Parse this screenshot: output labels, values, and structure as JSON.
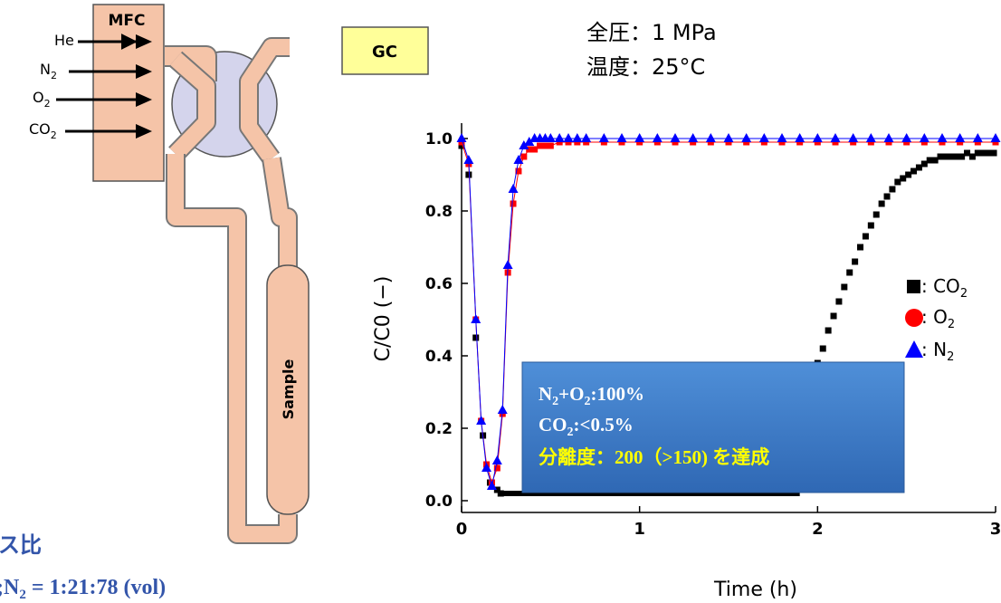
{
  "apparatus": {
    "mfc_label": "MFC",
    "gases": [
      {
        "label": "He",
        "sub": ""
      },
      {
        "label": "N",
        "sub": "2"
      },
      {
        "label": "O",
        "sub": "2"
      },
      {
        "label": "CO",
        "sub": "2"
      }
    ],
    "gc_label": "GC",
    "sample_label": "Sample"
  },
  "gas_ratio": {
    "title": "ス比",
    "line": [
      {
        "t": ";N",
        "sub": false
      },
      {
        "t": "2",
        "sub": true
      },
      {
        "t": " = 1:21:78 (vol)",
        "sub": false
      }
    ]
  },
  "conditions": {
    "pressure": "全圧：1 MPa",
    "temperature": "温度：25°C"
  },
  "result_box": {
    "line1": [
      {
        "t": "N",
        "sub": false
      },
      {
        "t": "2",
        "sub": true
      },
      {
        "t": "+O",
        "sub": false
      },
      {
        "t": "2",
        "sub": true
      },
      {
        "t": ":100%",
        "sub": false
      }
    ],
    "line2": [
      {
        "t": "CO",
        "sub": false
      },
      {
        "t": "2",
        "sub": true
      },
      {
        "t": ":<0.5%",
        "sub": false
      }
    ],
    "line3": "分離度：200（>150) を達成"
  },
  "colors": {
    "series_co2": "#000000",
    "series_o2": "#ff0000",
    "series_n2": "#0000ff",
    "mfc_fill": "#f5c4a8",
    "gc_fill": "#ffff99",
    "valve_fill": "#d4d4ec",
    "result_box_fill": "#3d7bc8",
    "result_highlight": "#ffff00",
    "gas_ratio_text": "#3355aa"
  },
  "chart_data": {
    "type": "scatter",
    "xlabel": "Time (h)",
    "ylabel": "C/C0 (−)",
    "xlim": [
      0,
      3
    ],
    "ylim": [
      0,
      1.05
    ],
    "xticks": [
      "0",
      "1",
      "2",
      "3"
    ],
    "yticks": [
      "0.0",
      "0.2",
      "0.4",
      "0.6",
      "0.8",
      "1.0"
    ],
    "legend_position": "right",
    "series": [
      {
        "name": "CO2",
        "legend": {
          "t": ": CO",
          "sub": "2"
        },
        "marker": "square",
        "x": [
          0.0,
          0.04,
          0.08,
          0.12,
          0.16,
          0.2,
          0.22,
          2.0,
          2.03,
          2.06,
          2.09,
          2.12,
          2.15,
          2.18,
          2.21,
          2.24,
          2.27,
          2.3,
          2.33,
          2.36,
          2.39,
          2.42,
          2.45,
          2.48,
          2.51,
          2.54,
          2.57,
          2.6,
          2.63,
          2.66,
          2.69,
          2.72,
          2.75,
          2.78,
          2.81,
          2.84,
          2.87,
          2.9,
          2.93,
          2.96,
          2.99
        ],
        "y": [
          0.98,
          0.9,
          0.45,
          0.18,
          0.05,
          0.03,
          0.02,
          0.38,
          0.42,
          0.47,
          0.51,
          0.55,
          0.59,
          0.63,
          0.66,
          0.7,
          0.73,
          0.76,
          0.79,
          0.82,
          0.84,
          0.86,
          0.88,
          0.89,
          0.9,
          0.91,
          0.92,
          0.93,
          0.94,
          0.94,
          0.95,
          0.95,
          0.95,
          0.95,
          0.95,
          0.96,
          0.95,
          0.96,
          0.96,
          0.96,
          0.96
        ],
        "baseline": {
          "x0": 0.22,
          "x1": 1.9,
          "y": 0.02
        }
      },
      {
        "name": "O2",
        "legend": {
          "t": ": O",
          "sub": "2"
        },
        "marker": "circle",
        "x": [
          0.0,
          0.04,
          0.08,
          0.11,
          0.14,
          0.17,
          0.2,
          0.23,
          0.26,
          0.29,
          0.32,
          0.35,
          0.38,
          0.41,
          0.44,
          0.47,
          0.5,
          0.55,
          0.6,
          0.65,
          0.7,
          0.8,
          0.9,
          1.0,
          1.1,
          1.2,
          1.3,
          1.4,
          1.5,
          1.6,
          1.7,
          1.8,
          1.9,
          2.0,
          2.1,
          2.2,
          2.3,
          2.4,
          2.5,
          2.6,
          2.7,
          2.8,
          2.9,
          3.0
        ],
        "y": [
          0.99,
          0.93,
          0.5,
          0.22,
          0.1,
          0.05,
          0.09,
          0.24,
          0.63,
          0.82,
          0.91,
          0.95,
          0.97,
          0.97,
          0.98,
          0.98,
          0.98,
          0.99,
          0.99,
          0.99,
          0.99,
          0.99,
          0.99,
          0.99,
          0.99,
          0.99,
          0.99,
          0.99,
          0.99,
          0.99,
          0.99,
          0.99,
          0.99,
          0.99,
          0.99,
          0.99,
          0.99,
          0.99,
          0.99,
          0.99,
          0.99,
          0.99,
          0.99,
          0.99
        ]
      },
      {
        "name": "N2",
        "legend": {
          "t": ": N",
          "sub": "2"
        },
        "marker": "triangle",
        "x": [
          0.0,
          0.04,
          0.08,
          0.11,
          0.14,
          0.17,
          0.2,
          0.23,
          0.26,
          0.29,
          0.32,
          0.35,
          0.38,
          0.41,
          0.44,
          0.47,
          0.5,
          0.55,
          0.6,
          0.65,
          0.7,
          0.8,
          0.9,
          1.0,
          1.1,
          1.2,
          1.3,
          1.4,
          1.5,
          1.6,
          1.7,
          1.8,
          1.9,
          2.0,
          2.1,
          2.2,
          2.3,
          2.4,
          2.5,
          2.6,
          2.7,
          2.8,
          2.9,
          3.0
        ],
        "y": [
          1.0,
          0.94,
          0.5,
          0.22,
          0.09,
          0.04,
          0.11,
          0.25,
          0.65,
          0.86,
          0.94,
          0.98,
          0.99,
          1.0,
          1.0,
          1.0,
          1.0,
          1.0,
          1.0,
          1.0,
          1.0,
          1.0,
          1.0,
          1.0,
          1.0,
          1.0,
          1.0,
          1.0,
          1.0,
          1.0,
          1.0,
          1.0,
          1.0,
          1.0,
          1.0,
          1.0,
          1.0,
          1.0,
          1.0,
          1.0,
          1.0,
          1.0,
          1.0,
          1.0
        ]
      }
    ]
  }
}
